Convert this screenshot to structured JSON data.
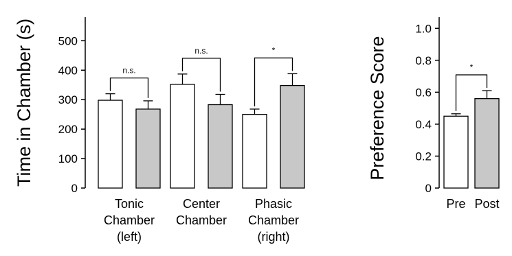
{
  "chart_data": [
    {
      "type": "bar",
      "ylabel": "Time in Chamber (s)",
      "ylim": [
        0,
        580
      ],
      "yticks": [
        0,
        100,
        200,
        300,
        400,
        500
      ],
      "categories": [
        [
          "Tonic",
          "Chamber",
          "(left)"
        ],
        [
          "Center",
          "Chamber"
        ],
        [
          "Phasic",
          "Chamber",
          "(right)"
        ]
      ],
      "series": [
        {
          "fill": "#ffffff",
          "values": [
            298,
            352,
            250
          ],
          "errors": [
            22,
            35,
            18
          ]
        },
        {
          "fill": "#c8c8c8",
          "values": [
            268,
            283,
            348
          ],
          "errors": [
            28,
            35,
            40
          ]
        }
      ],
      "significance": [
        "n.s.",
        "n.s.",
        "*"
      ],
      "grid": false
    },
    {
      "type": "bar",
      "ylabel": "Preference Score",
      "ylim": [
        0,
        1.07
      ],
      "yticks": [
        "0",
        "0.2",
        "0.4",
        "0.6",
        "0.8",
        "1.0"
      ],
      "categories": [
        "Pre",
        "Post"
      ],
      "values": [
        0.45,
        0.56
      ],
      "errors": [
        0.015,
        0.05
      ],
      "fills": [
        "#ffffff",
        "#c8c8c8"
      ],
      "significance": "*",
      "grid": false
    }
  ]
}
